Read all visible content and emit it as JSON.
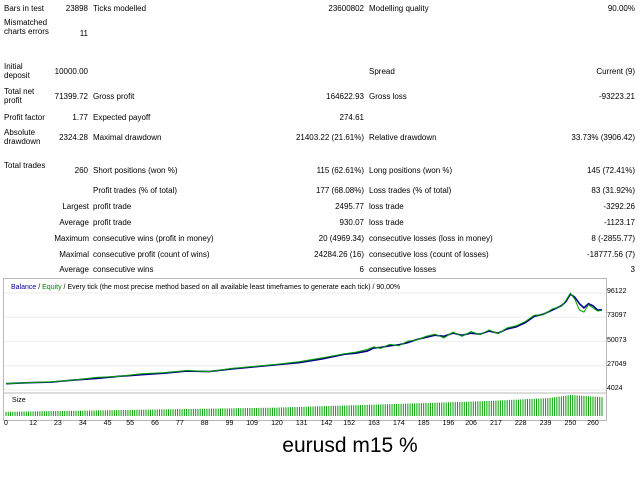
{
  "report": {
    "bars_in_test_label": "Bars in test",
    "bars_in_test_value": "23898",
    "ticks_modelled_label": "Ticks modelled",
    "ticks_modelled_value": "23600802",
    "modelling_quality_label": "Modelling quality",
    "modelling_quality_value": "90.00%",
    "mismatched_label": "Mismatched charts errors",
    "mismatched_value": "11",
    "initial_deposit_label": "Initial deposit",
    "initial_deposit_value": "10000.00",
    "spread_label": "Spread",
    "spread_value": "Current (9)",
    "total_net_profit_label": "Total net profit",
    "total_net_profit_value": "71399.72",
    "gross_profit_label": "Gross profit",
    "gross_profit_value": "164622.93",
    "gross_loss_label": "Gross loss",
    "gross_loss_value": "-93223.21",
    "profit_factor_label": "Profit factor",
    "profit_factor_value": "1.77",
    "expected_payoff_label": "Expected payoff",
    "expected_payoff_value": "274.61",
    "absolute_drawdown_label": "Absolute drawdown",
    "absolute_drawdown_value": "2324.28",
    "maximal_drawdown_label": "Maximal drawdown",
    "maximal_drawdown_value": "21403.22 (21.61%)",
    "relative_drawdown_label": "Relative drawdown",
    "relative_drawdown_value": "33.73% (3906.42)",
    "total_trades_label": "Total trades",
    "total_trades_value": "260",
    "short_positions_label": "Short positions (won %)",
    "short_positions_value": "115 (62.61%)",
    "long_positions_label": "Long positions (won %)",
    "long_positions_value": "145 (72.41%)",
    "profit_trades_label": "Profit trades (% of total)",
    "profit_trades_value": "177 (68.08%)",
    "loss_trades_label": "Loss trades (% of total)",
    "loss_trades_value": "83 (31.92%)",
    "largest_label": "Largest",
    "largest_profit_label": "profit trade",
    "largest_profit_value": "2495.77",
    "largest_loss_label": "loss trade",
    "largest_loss_value": "-3292.26",
    "average_label": "Average",
    "average_profit_label": "profit trade",
    "average_profit_value": "930.07",
    "average_loss_label": "loss trade",
    "average_loss_value": "-1123.17",
    "maximum_label": "Maximum",
    "max_cons_wins_label": "consecutive wins (profit in money)",
    "max_cons_wins_value": "20 (4969.34)",
    "max_cons_losses_label": "consecutive losses (loss in money)",
    "max_cons_losses_value": "8 (-2855.77)",
    "maximal_label": "Maximal",
    "maximal_cons_profit_label": "consecutive profit (count of wins)",
    "maximal_cons_profit_value": "24284.26 (16)",
    "maximal_cons_loss_label": "consecutive loss (count of losses)",
    "maximal_cons_loss_value": "-18777.56 (7)",
    "average2_label": "Average",
    "avg_cons_wins_label": "consecutive wins",
    "avg_cons_wins_value": "6",
    "avg_cons_losses_label": "consecutive losses",
    "avg_cons_losses_value": "3"
  },
  "chart": {
    "legend_balance": "Balance",
    "legend_sep": " / ",
    "legend_equity": "Equity",
    "legend_rest": " / Every tick (the most precise method based on all available least timeframes to generate each tick) / 90.00%",
    "size_label": "Size",
    "colors": {
      "balance": "#00008b",
      "equity": "#00a000",
      "size": "#00a000",
      "frame": "#b8b8b8"
    }
  },
  "chart_data": {
    "type": "line",
    "y_ticks": [
      "96122",
      "73097",
      "50073",
      "27049",
      "4024"
    ],
    "ylim": [
      4024,
      96122
    ],
    "x_ticks": [
      "0",
      "12",
      "23",
      "34",
      "45",
      "55",
      "66",
      "77",
      "88",
      "99",
      "109",
      "120",
      "131",
      "142",
      "152",
      "163",
      "174",
      "185",
      "196",
      "206",
      "217",
      "228",
      "239",
      "250",
      "260"
    ],
    "xlim": [
      0,
      264
    ],
    "series": [
      {
        "name": "Balance",
        "x": [
          0,
          10,
          20,
          30,
          40,
          50,
          60,
          70,
          80,
          90,
          100,
          110,
          120,
          130,
          140,
          150,
          155,
          160,
          163,
          166,
          170,
          174,
          178,
          182,
          186,
          190,
          194,
          198,
          202,
          206,
          210,
          214,
          218,
          222,
          226,
          230,
          234,
          238,
          242,
          246,
          248,
          250,
          252,
          254,
          256,
          258,
          260,
          262,
          264
        ],
        "values": [
          10000,
          11000,
          11500,
          13500,
          15000,
          17000,
          18500,
          20000,
          22000,
          21500,
          24000,
          26000,
          28000,
          30000,
          33500,
          38000,
          39000,
          41000,
          44000,
          44500,
          46000,
          47000,
          49000,
          52000,
          54000,
          56000,
          55000,
          58000,
          56000,
          58000,
          57000,
          60000,
          58000,
          62000,
          64000,
          68000,
          74000,
          76000,
          80000,
          84000,
          88000,
          95000,
          92000,
          86000,
          82000,
          86000,
          84000,
          80000,
          80000
        ]
      },
      {
        "name": "Equity",
        "x": [
          0,
          10,
          20,
          30,
          40,
          50,
          60,
          70,
          80,
          90,
          100,
          110,
          120,
          130,
          140,
          150,
          155,
          160,
          163,
          166,
          170,
          174,
          178,
          182,
          186,
          190,
          194,
          198,
          202,
          206,
          210,
          214,
          218,
          222,
          226,
          230,
          234,
          238,
          242,
          246,
          248,
          250,
          252,
          254,
          256,
          258,
          260,
          262,
          264
        ],
        "values": [
          10000,
          11000,
          11800,
          13500,
          16000,
          17000,
          19500,
          20500,
          22500,
          21500,
          24500,
          26500,
          28500,
          31000,
          34500,
          38500,
          40000,
          42500,
          45000,
          43500,
          47500,
          46000,
          50500,
          51500,
          55000,
          57000,
          53500,
          59000,
          55000,
          59500,
          56500,
          61000,
          57500,
          63000,
          65000,
          69000,
          75000,
          75500,
          81000,
          83500,
          89000,
          96000,
          90000,
          80000,
          78000,
          85000,
          82000,
          79000,
          79500
        ]
      },
      {
        "name": "Size",
        "x": [
          0,
          30,
          60,
          90,
          120,
          150,
          180,
          210,
          240,
          250,
          264
        ],
        "values": [
          0.2,
          0.25,
          0.3,
          0.35,
          0.4,
          0.5,
          0.6,
          0.7,
          0.85,
          1.0,
          0.9
        ]
      }
    ]
  },
  "caption": "eurusd m15 %"
}
